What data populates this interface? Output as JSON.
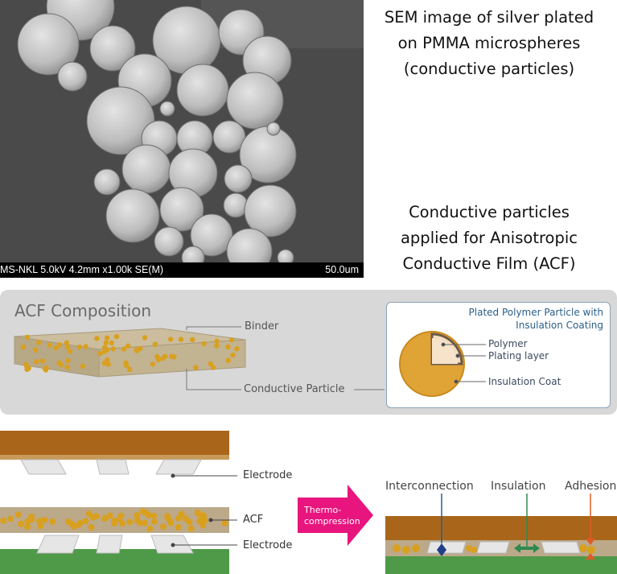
{
  "sem": {
    "footer_left": "MS-NKL 5.0kV 4.2mm x1.00k SE(M)",
    "footer_right": "50.0um"
  },
  "captions": {
    "sem_lines": [
      "SEM image of silver plated",
      "on PMMA microspheres",
      "(conductive particles)"
    ],
    "acf_lines": [
      "Conductive particles",
      "applied for Anisotropic",
      "Conductive Film (ACF)"
    ]
  },
  "composition": {
    "title": "ACF Composition",
    "binder_label": "Binder",
    "particle_label": "Conductive Particle"
  },
  "particle_box": {
    "title_line1": "Plated Polymer Particle with",
    "title_line2": "Insulation Coating",
    "polymer": "Polymer",
    "plating": "Plating layer",
    "insulation": "Insulation Coat"
  },
  "process": {
    "electrode_top": "Electrode",
    "acf": "ACF",
    "electrode_bottom": "Electrode",
    "arrow_line1": "Thermo-",
    "arrow_line2": "compression",
    "interconnection": "Interconnection",
    "insulation": "Insulation",
    "adhesion": "Adhesion"
  },
  "colors": {
    "panel_bg": "#d8d8d8",
    "particle_gold": "#d9a020",
    "substrate_brown": "#a9661b",
    "substrate_green": "#4f9a48",
    "arrow_magenta": "#e8157e",
    "accent_blue": "#2a5f88"
  }
}
